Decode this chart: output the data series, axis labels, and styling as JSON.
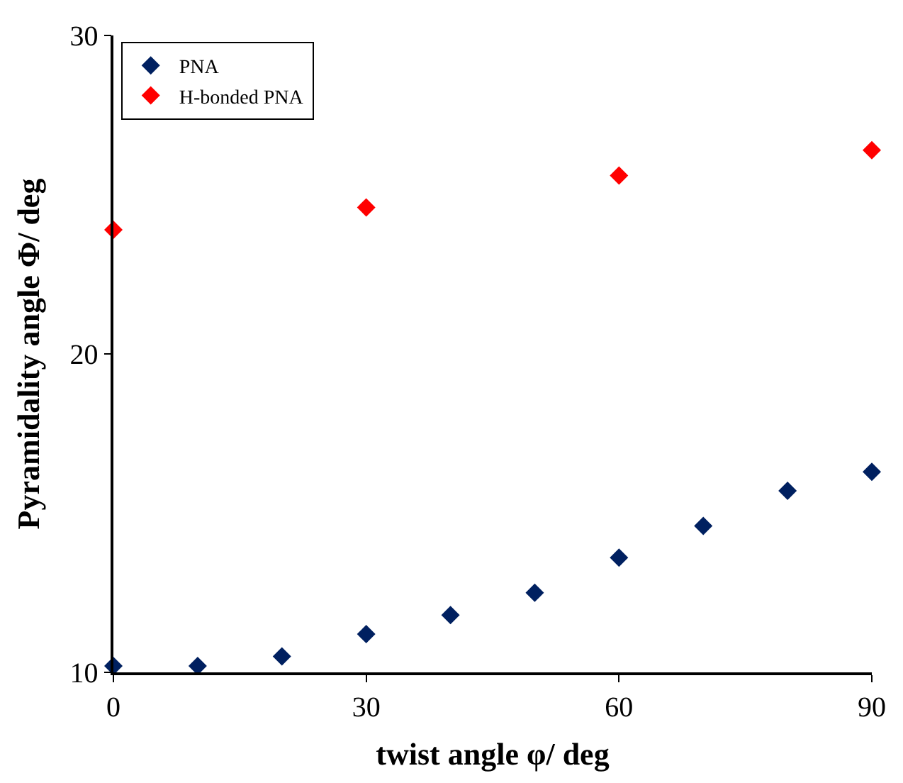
{
  "chart_data": {
    "type": "scatter",
    "xlabel": "twist angle φ/ deg",
    "ylabel": "Pyramidality angle Φ/ deg",
    "xlim": [
      0,
      90
    ],
    "xticks": [
      0,
      30,
      60,
      90
    ],
    "ylim": [
      10,
      30
    ],
    "yticks": [
      10,
      20,
      30
    ],
    "legend": "top left",
    "marker": "diamond",
    "series": [
      {
        "name": "PNA",
        "color": "#002060",
        "x": [
          0,
          10,
          20,
          30,
          40,
          50,
          60,
          70,
          80,
          90
        ],
        "values": [
          10.2,
          10.2,
          10.5,
          11.2,
          11.8,
          12.5,
          13.6,
          14.6,
          15.7,
          16.3
        ]
      },
      {
        "name": "H-bonded PNA",
        "color": "#ff0000",
        "x": [
          0,
          30,
          60,
          90
        ],
        "values": [
          23.9,
          24.6,
          25.6,
          26.4
        ]
      }
    ]
  }
}
